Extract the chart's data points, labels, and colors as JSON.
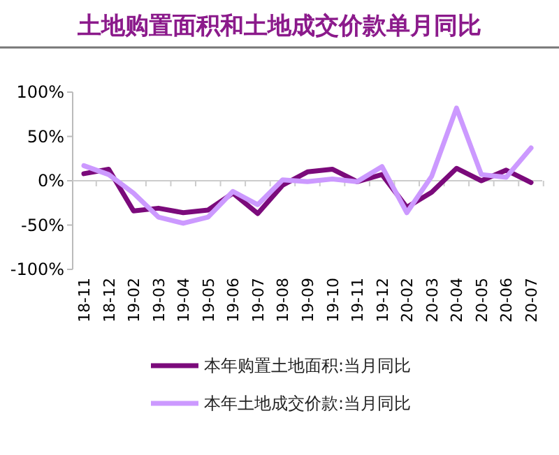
{
  "chart_data": {
    "type": "line",
    "title": "土地购置面积和土地成交价款单月同比",
    "categories": [
      "18-11",
      "18-12",
      "19-02",
      "19-03",
      "19-04",
      "19-05",
      "19-06",
      "19-07",
      "19-08",
      "19-09",
      "19-10",
      "19-11",
      "19-12",
      "20-02",
      "20-03",
      "20-04",
      "20-05",
      "20-06",
      "20-07"
    ],
    "series": [
      {
        "name": "本年购置土地面积:当月同比",
        "color": "#7b0a7b",
        "values": [
          8,
          13,
          -34,
          -31,
          -36,
          -33,
          -14,
          -37,
          -5,
          10,
          13,
          -1,
          7,
          -30,
          -13,
          14,
          0,
          12,
          -2
        ]
      },
      {
        "name": "本年土地成交价款:当月同比",
        "color": "#cc99ff",
        "values": [
          17,
          7,
          -14,
          -41,
          -48,
          -41,
          -12,
          -27,
          1,
          -1,
          2,
          -1,
          16,
          -36,
          5,
          82,
          7,
          4,
          37
        ]
      }
    ],
    "ylim": [
      -100,
      100
    ],
    "yticks": [
      {
        "value": -100,
        "label": "-100%"
      },
      {
        "value": -50,
        "label": "-50%"
      },
      {
        "value": 0,
        "label": "0%"
      },
      {
        "value": 50,
        "label": "50%"
      },
      {
        "value": 100,
        "label": "100%"
      }
    ],
    "legend": "bottom",
    "marker": "none",
    "line_style": "solid"
  }
}
